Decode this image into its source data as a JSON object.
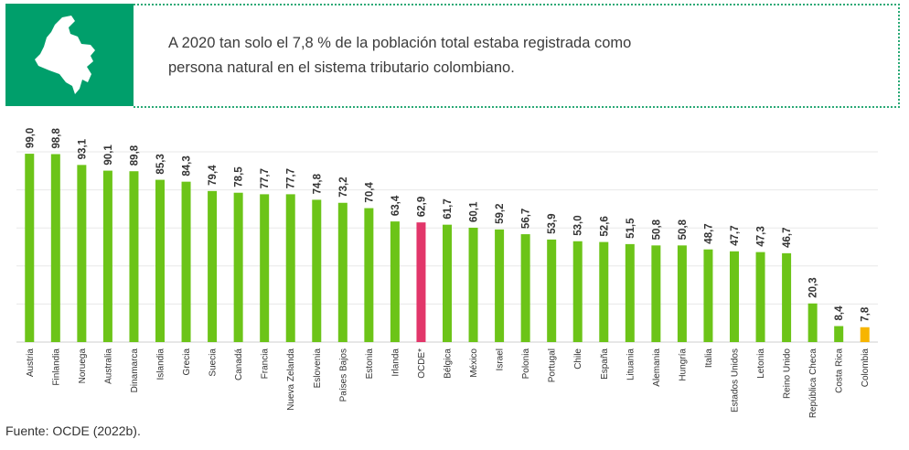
{
  "header": {
    "statement": "A 2020 tan solo el 7,8 % de la población total estaba registrada como persona natural en el sistema tributario colombiano.",
    "icon": "colombia-map-icon",
    "accent_color": "#009f6b"
  },
  "chart_data": {
    "type": "bar",
    "title": "",
    "xlabel": "",
    "ylabel": "",
    "ylim": [
      0,
      100
    ],
    "grid": true,
    "categories": [
      "Austria",
      "Finlandia",
      "Noruega",
      "Australia",
      "Dinamarca",
      "Islandia",
      "Grecia",
      "Suecia",
      "Canadá",
      "Francia",
      "Nueva Zelanda",
      "Eslovenia",
      "Países Bajos",
      "Estonia",
      "Irlanda",
      "OCDE*",
      "Bélgica",
      "México",
      "Israel",
      "Polonia",
      "Portugal",
      "Chile",
      "España",
      "Lituania",
      "Alemania",
      "Hungría",
      "Italia",
      "Estados Unidos",
      "Letonia",
      "Reino Unido",
      "República Checa",
      "Costa Rica",
      "Colombia"
    ],
    "values": [
      99.0,
      98.8,
      93.1,
      90.1,
      89.8,
      85.3,
      84.3,
      79.4,
      78.5,
      77.7,
      77.7,
      74.8,
      73.2,
      70.4,
      63.4,
      62.9,
      61.7,
      60.1,
      59.2,
      56.7,
      53.9,
      53.0,
      52.6,
      51.5,
      50.8,
      50.8,
      48.7,
      47.7,
      47.3,
      46.7,
      20.3,
      8.4,
      7.8
    ],
    "value_labels": [
      "99,0",
      "98,8",
      "93,1",
      "90,1",
      "89,8",
      "85,3",
      "84,3",
      "79,4",
      "78,5",
      "77,7",
      "77,7",
      "74,8",
      "73,2",
      "70,4",
      "63,4",
      "62,9",
      "61,7",
      "60,1",
      "59,2",
      "56,7",
      "53,9",
      "53,0",
      "52,6",
      "51,5",
      "50,8",
      "50,8",
      "48,7",
      "47,7",
      "47,3",
      "46,7",
      "20,3",
      "8,4",
      "7,8"
    ],
    "colors": {
      "default": "#6cc418",
      "OCDE*": "#e2366a",
      "Colombia": "#f7b500",
      "grid": "#e8e8e8",
      "text": "#333333"
    }
  },
  "source": "Fuente: OCDE (2022b)."
}
